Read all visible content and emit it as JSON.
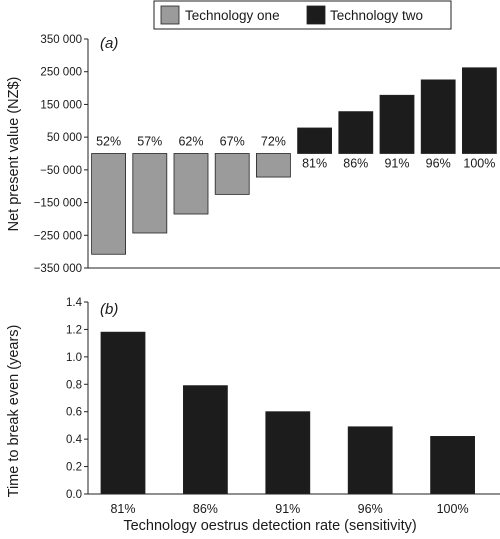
{
  "legend": {
    "items": [
      {
        "name": "Technology one",
        "color": "#9b9b9b"
      },
      {
        "name": "Technology two",
        "color": "#1c1c1c"
      }
    ]
  },
  "chart_data": [
    {
      "type": "bar",
      "panel": "(a)",
      "ylabel": "Net present value (NZ$)",
      "ylim": [
        -350000,
        350000
      ],
      "yticks": [
        350000,
        250000,
        150000,
        50000,
        -50000,
        -150000,
        -250000,
        -350000
      ],
      "ytick_labels": [
        "350 000",
        "250 000",
        "150 000",
        "50 000",
        "−50 000",
        "−150 000",
        "−250 000",
        "−350 000"
      ],
      "series": [
        {
          "name": "Technology one",
          "color": "#9b9b9b",
          "categories": [
            "52%",
            "57%",
            "62%",
            "67%",
            "72%"
          ],
          "values": [
            -308000,
            -243000,
            -185000,
            -125000,
            -72000
          ]
        },
        {
          "name": "Technology two",
          "color": "#1c1c1c",
          "categories": [
            "81%",
            "86%",
            "91%",
            "96%",
            "100%"
          ],
          "values": [
            78000,
            128000,
            178000,
            225000,
            262000
          ]
        }
      ]
    },
    {
      "type": "bar",
      "panel": "(b)",
      "xlabel": "Technology oestrus detection rate (sensitivity)",
      "ylabel": "Time to break even (years)",
      "ylim": [
        0,
        1.4
      ],
      "yticks": [
        0,
        0.2,
        0.4,
        0.6,
        0.8,
        1.0,
        1.2,
        1.4
      ],
      "ytick_labels": [
        "0.0",
        "0.2",
        "0.4",
        "0.6",
        "0.8",
        "1.0",
        "1.2",
        "1.4"
      ],
      "categories": [
        "81%",
        "86%",
        "91%",
        "96%",
        "100%"
      ],
      "values": [
        1.18,
        0.79,
        0.6,
        0.49,
        0.42
      ],
      "color": "#1c1c1c"
    }
  ]
}
